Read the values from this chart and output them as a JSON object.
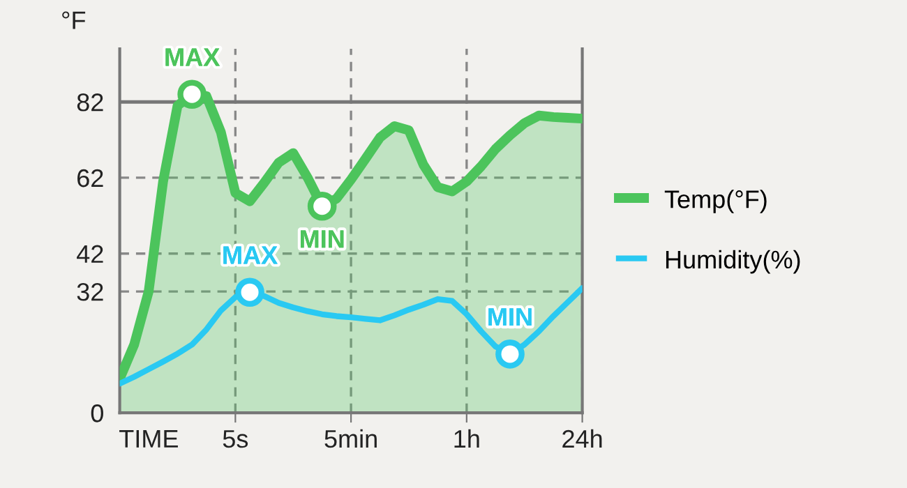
{
  "chart_data": {
    "type": "line",
    "xlabel": "TIME",
    "ylabel": "°F",
    "categories": [
      null,
      null,
      null,
      null,
      null,
      null,
      null,
      null,
      "5s",
      null,
      null,
      null,
      null,
      null,
      null,
      null,
      "5min",
      null,
      null,
      null,
      null,
      null,
      null,
      null,
      "1h",
      null,
      null,
      null,
      null,
      null,
      null,
      null,
      "24h"
    ],
    "ylim": [
      0,
      96
    ],
    "yticks": [
      0,
      32,
      42,
      62,
      82
    ],
    "grid": true,
    "legend": "right",
    "line_style": "solid",
    "marker": "none",
    "ref_lines": [
      {
        "axis": "y",
        "value": 82,
        "label": null,
        "color": "#777777",
        "line_style": "solid"
      }
    ],
    "series": [
      {
        "name": "Temp(°F)",
        "type": "area",
        "color": "#4cc45c",
        "values": [
          9,
          18,
          32,
          61,
          81,
          84,
          83.5,
          74,
          58,
          55.8,
          60.7,
          66,
          68.5,
          62,
          54.5,
          56.5,
          61.5,
          67,
          72.6,
          75.6,
          74.5,
          65.5,
          59.5,
          58.4,
          61,
          65,
          69.6,
          73.2,
          76.4,
          78.4,
          78,
          77.8,
          77.6
        ]
      },
      {
        "name": "Humidity(%)",
        "color": "#29c9f2",
        "values": [
          7.7,
          9.5,
          11.5,
          13.5,
          15.6,
          18,
          22,
          27,
          30.5,
          31.8,
          30.8,
          29,
          27.8,
          26.8,
          26,
          25.5,
          25.2,
          24.8,
          24.4,
          25.7,
          27.2,
          28.5,
          30,
          29.5,
          26,
          21.5,
          17.5,
          15.5,
          18,
          21.5,
          25.5,
          29.2,
          32.9
        ]
      }
    ],
    "annotations": [
      {
        "text": "MAX",
        "y": 84
      },
      {
        "text": "MIN",
        "y": 54.5
      },
      {
        "text": "MAX",
        "y": 31.8
      },
      {
        "text": "MIN",
        "y": 15.5
      }
    ]
  }
}
